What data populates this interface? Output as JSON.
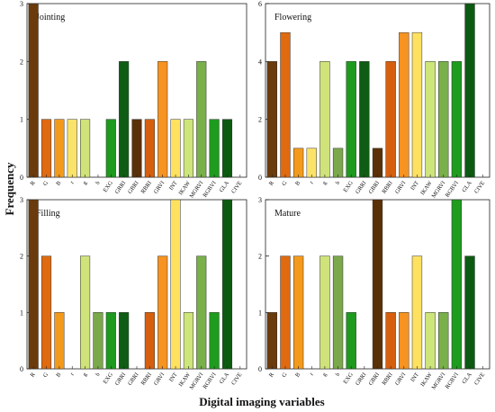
{
  "figure": {
    "ylabel": "Frequency",
    "xlabel": "Digital imaging variables"
  },
  "chart_data": [
    {
      "type": "bar",
      "title": "Jointing",
      "categories": [
        "R",
        "G",
        "B",
        "r",
        "g",
        "b",
        "EXG",
        "GRRI",
        "GBRI",
        "RBRI",
        "GRVI",
        "INT",
        "IKAW",
        "MGRVI",
        "RGBVI",
        "GLA",
        "CIVE"
      ],
      "values": [
        3,
        1,
        1,
        1,
        1,
        0,
        1,
        2,
        1,
        1,
        2,
        1,
        1,
        2,
        1,
        1,
        0
      ],
      "ylim": [
        0,
        3
      ],
      "yticks": [
        0,
        1,
        2,
        3
      ],
      "grid": false
    },
    {
      "type": "bar",
      "title": "Flowering",
      "categories": [
        "R",
        "G",
        "B",
        "r",
        "g",
        "b",
        "EXG",
        "GRRI",
        "GBRI",
        "RBRI",
        "GRVI",
        "INT",
        "IKAW",
        "MGRVI",
        "RGBVI",
        "GLA",
        "CIVE"
      ],
      "values": [
        4,
        5,
        1,
        1,
        4,
        1,
        4,
        4,
        1,
        4,
        5,
        5,
        4,
        4,
        4,
        6,
        0
      ],
      "ylim": [
        0,
        6
      ],
      "yticks": [
        0,
        2,
        4,
        6
      ],
      "grid": false
    },
    {
      "type": "bar",
      "title": "Filling",
      "categories": [
        "R",
        "G",
        "B",
        "r",
        "g",
        "b",
        "EXG",
        "GRRI",
        "GBRI",
        "RBRI",
        "GRVI",
        "INT",
        "IKAW",
        "MGRVI",
        "RGBVI",
        "GLA",
        "CIVE"
      ],
      "values": [
        3,
        2,
        1,
        0,
        2,
        1,
        1,
        1,
        0,
        1,
        2,
        3,
        1,
        2,
        1,
        3,
        0
      ],
      "ylim": [
        0,
        3
      ],
      "yticks": [
        0,
        1,
        2,
        3
      ],
      "grid": false
    },
    {
      "type": "bar",
      "title": "Mature",
      "categories": [
        "R",
        "G",
        "B",
        "r",
        "g",
        "b",
        "EXG",
        "GRRI",
        "GBRI",
        "RBRI",
        "GRVI",
        "INT",
        "IKAW",
        "MGRVI",
        "RGBVI",
        "GLA",
        "CIVE"
      ],
      "values": [
        1,
        2,
        2,
        0,
        2,
        2,
        1,
        0,
        3,
        1,
        1,
        2,
        1,
        1,
        3,
        2,
        0
      ],
      "ylim": [
        0,
        3
      ],
      "yticks": [
        0,
        1,
        2,
        3
      ],
      "grid": false
    }
  ],
  "colors": {
    "R": "#6b3b0c",
    "G": "#e06a10",
    "B": "#f39a1c",
    "r": "#fbe36a",
    "g": "#cfe37a",
    "b": "#7aa84a",
    "EXG": "#1e9a1e",
    "GRRI": "#0f5c14",
    "GBRI": "#5a3008",
    "RBRI": "#d65f0e",
    "GRVI": "#f79320",
    "INT": "#ffe160",
    "IKAW": "#cde57a",
    "MGRVI": "#79b04a",
    "RGBVI": "#1e9c1e",
    "GLA": "#0c5a12",
    "CIVE": "#0c5a12"
  }
}
